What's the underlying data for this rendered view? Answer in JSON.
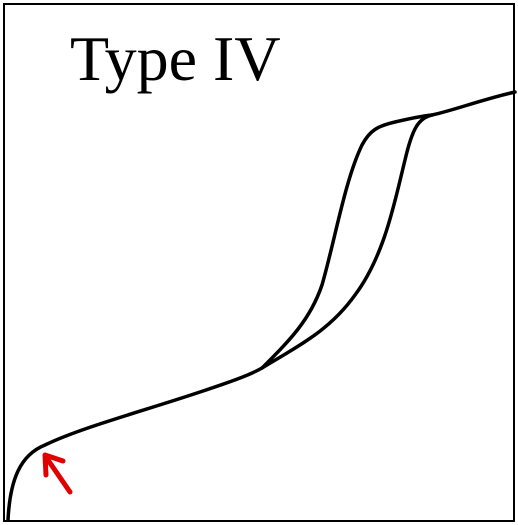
{
  "title": "Type IV"
}
